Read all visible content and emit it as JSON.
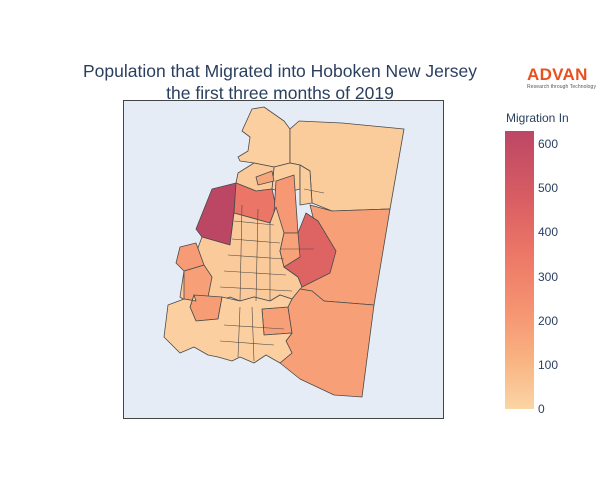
{
  "title": {
    "line1": "Population that Migrated into Hoboken New Jersey",
    "line2": "the first three months of 2019"
  },
  "logo": {
    "word": "ADVAN",
    "tagline": "Research through Technology",
    "color": "#e9501e"
  },
  "colorbar": {
    "title": "Migration In",
    "min": 0,
    "max": 630,
    "ticks": [
      "0",
      "100",
      "200",
      "300",
      "400",
      "500",
      "600"
    ],
    "tick_values": [
      0,
      100,
      200,
      300,
      400,
      500,
      600
    ]
  },
  "colorscale": [
    "#fbd5a5",
    "#f9b281",
    "#f59371",
    "#ed7867",
    "#d85d63",
    "#bc4765"
  ],
  "chart_data": {
    "type": "choropleth",
    "metric": "Migration In",
    "regions": [
      {
        "id": "north-tip",
        "value": 20
      },
      {
        "id": "northeast-large",
        "value": 35
      },
      {
        "id": "north-strip",
        "value": 25
      },
      {
        "id": "north-small-a",
        "value": 40
      },
      {
        "id": "north-small-b",
        "value": 30
      },
      {
        "id": "nw-dark",
        "value": 630
      },
      {
        "id": "top-mid",
        "value": 390
      },
      {
        "id": "hatch-1",
        "value": 180
      },
      {
        "id": "hatch-2",
        "value": 230
      },
      {
        "id": "east-large",
        "value": 200
      },
      {
        "id": "west-side",
        "value": 40
      },
      {
        "id": "mid-right-red",
        "value": 470
      },
      {
        "id": "mid-small-right",
        "value": 190
      },
      {
        "id": "west-orange-1",
        "value": 200
      },
      {
        "id": "west-orange-2",
        "value": 220
      },
      {
        "id": "mid-orange",
        "value": 210
      },
      {
        "id": "south-mid-orange",
        "value": 200
      },
      {
        "id": "southeast-large",
        "value": 200
      },
      {
        "id": "southwest",
        "value": 20
      }
    ]
  }
}
